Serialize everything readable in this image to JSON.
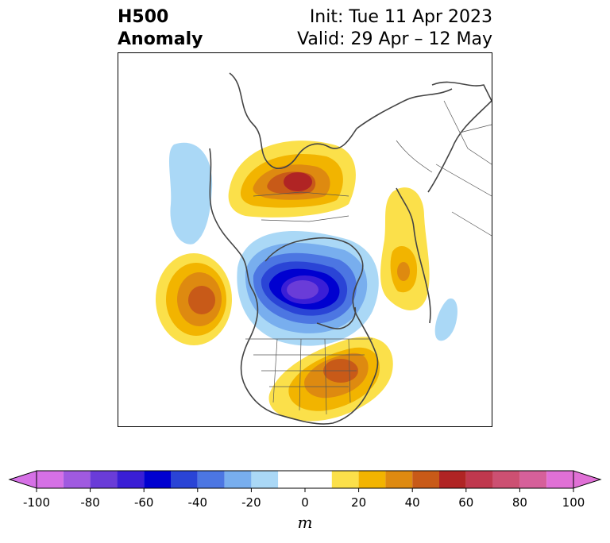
{
  "title": {
    "left_line1": "H500",
    "left_line2": "Anomaly",
    "right_line1": "Init: Tue 11 Apr 2023",
    "right_line2": "Valid: 29 Apr – 12 May"
  },
  "colorbar": {
    "units": "m",
    "tick_labels": [
      "-100",
      "-80",
      "-60",
      "-40",
      "-20",
      "0",
      "20",
      "40",
      "60",
      "80",
      "100"
    ],
    "levels": [
      -100,
      -90,
      -80,
      -70,
      -60,
      -50,
      -40,
      -30,
      -20,
      -10,
      10,
      20,
      30,
      40,
      50,
      60,
      70,
      80,
      90,
      100
    ],
    "colors": [
      "#d670e6",
      "#a05ae0",
      "#6a3cd8",
      "#3a1ed6",
      "#0000d0",
      "#2a44d6",
      "#4c76e2",
      "#78aeee",
      "#aad8f6",
      "#ffffff",
      "#fbe04a",
      "#f2b400",
      "#de8a10",
      "#c85a18",
      "#b02424",
      "#c0384e",
      "#cc5072",
      "#d6609a",
      "#e070d6"
    ]
  },
  "map": {
    "region": "North America / Arctic polar stereographic",
    "anomaly_centers": [
      {
        "name": "Greenland-Arctic ridge",
        "sign": "positive",
        "peak_m": 50
      },
      {
        "name": "Hudson Bay trough",
        "sign": "negative",
        "peak_m": -100
      },
      {
        "name": "Gulf of Alaska ridge",
        "sign": "positive",
        "peak_m": 40
      },
      {
        "name": "Eastern US ridge",
        "sign": "positive",
        "peak_m": 40
      },
      {
        "name": "Europe ridge",
        "sign": "positive",
        "peak_m": 30
      },
      {
        "name": "Siberia trough",
        "sign": "negative",
        "peak_m": -20
      },
      {
        "name": "Atlantic trough",
        "sign": "negative",
        "peak_m": -20
      }
    ]
  }
}
